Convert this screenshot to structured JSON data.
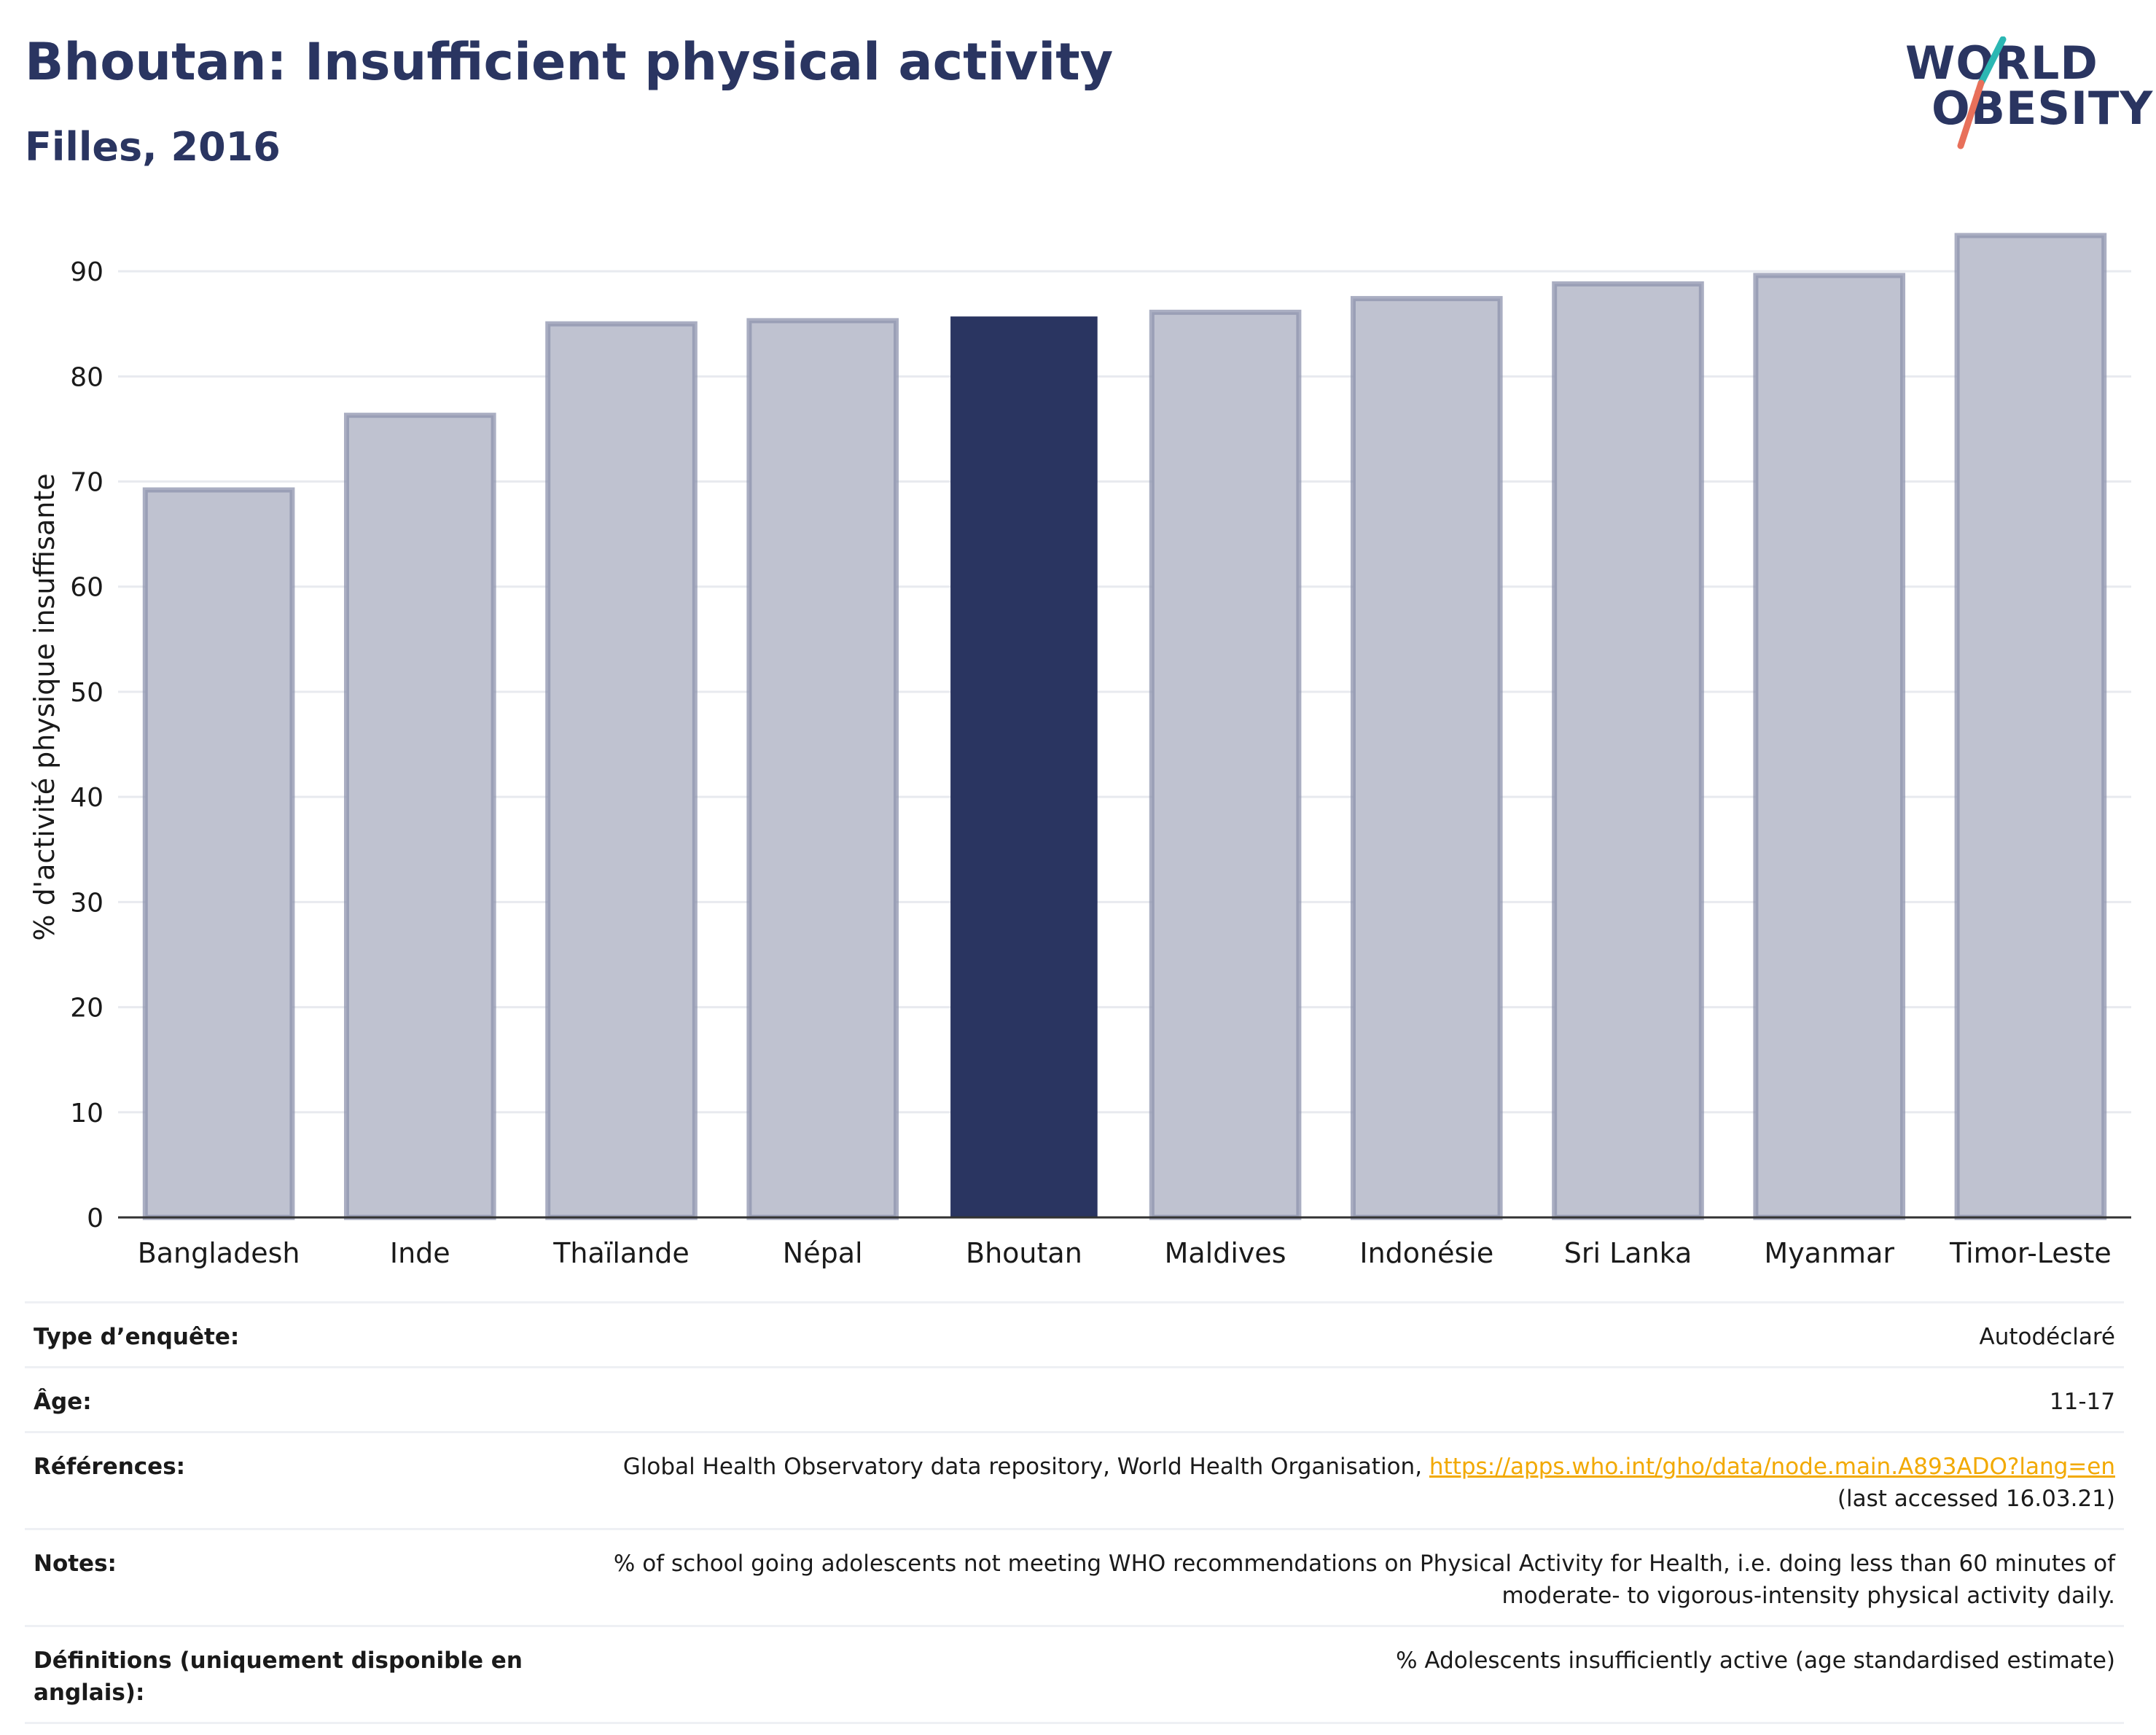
{
  "header": {
    "title": "Bhoutan: Insufficient physical activity",
    "subtitle": "Filles, 2016"
  },
  "logo": {
    "line1": "WORLD",
    "line2": "OBESITY",
    "accent_colors": [
      "#2bb7b3",
      "#e8705a"
    ]
  },
  "colors": {
    "highlight": "#2a3561",
    "bar_fill": "#bfc2d0",
    "bar_stroke": "#8d93ad",
    "grid": "#e8eaef",
    "link": "#f2a900"
  },
  "chart_data": {
    "type": "bar",
    "title": "",
    "xlabel": "",
    "ylabel": "% d'activité physique insuffisante",
    "categories": [
      "Bangladesh",
      "Inde",
      "Thaïlande",
      "Népal",
      "Bhoutan",
      "Maldives",
      "Indonésie",
      "Sri Lanka",
      "Myanmar",
      "Timor-Leste"
    ],
    "values": [
      69.2,
      76.3,
      85.0,
      85.3,
      85.7,
      86.1,
      87.4,
      88.8,
      89.6,
      93.4
    ],
    "highlight": "Bhoutan",
    "ylim": [
      0,
      95
    ],
    "yticks": [
      0,
      10,
      20,
      30,
      40,
      50,
      60,
      70,
      80,
      90
    ],
    "grid": true,
    "legend": "none"
  },
  "info": [
    {
      "label": "Type d’enquête:",
      "value": "Autodéclaré"
    },
    {
      "label": "Âge:",
      "value": "11-17"
    },
    {
      "label": "Références:",
      "value_prefix": "Global Health Observatory data repository, World Health Organisation, ",
      "link": "https://apps.who.int/gho/data/node.main.A893ADO?lang=en",
      "value_suffix": "(last accessed 16.03.21)"
    },
    {
      "label": "Notes:",
      "value_line1": "% of school going adolescents not meeting WHO recommendations on Physical Activity for Health, i.e. doing less than 60 minutes of",
      "value_line2": "moderate- to vigorous-intensity physical activity daily."
    },
    {
      "label": "Définitions (uniquement disponible en anglais):",
      "value": "% Adolescents insufficiently active (age standardised estimate)"
    }
  ]
}
